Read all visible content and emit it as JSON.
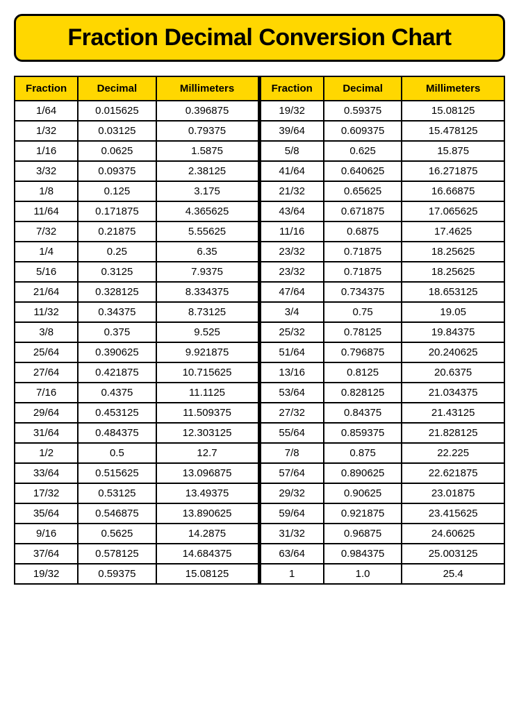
{
  "title": "Fraction Decimal Conversion Chart",
  "colors": {
    "header_bg": "#ffd700",
    "border": "#000000",
    "text": "#000000",
    "page_bg": "#ffffff"
  },
  "typography": {
    "title_fontsize": 34,
    "title_weight": 900,
    "header_fontsize": 15,
    "header_weight": 900,
    "cell_fontsize": 15
  },
  "columns": [
    "Fraction",
    "Decimal",
    "Millimeters"
  ],
  "left_rows": [
    [
      "1/64",
      "0.015625",
      "0.396875"
    ],
    [
      "1/32",
      "0.03125",
      "0.79375"
    ],
    [
      "1/16",
      "0.0625",
      "1.5875"
    ],
    [
      "3/32",
      "0.09375",
      "2.38125"
    ],
    [
      "1/8",
      "0.125",
      "3.175"
    ],
    [
      "11/64",
      "0.171875",
      "4.365625"
    ],
    [
      "7/32",
      "0.21875",
      "5.55625"
    ],
    [
      "1/4",
      "0.25",
      "6.35"
    ],
    [
      "5/16",
      "0.3125",
      "7.9375"
    ],
    [
      "21/64",
      "0.328125",
      "8.334375"
    ],
    [
      "11/32",
      "0.34375",
      "8.73125"
    ],
    [
      "3/8",
      "0.375",
      "9.525"
    ],
    [
      "25/64",
      "0.390625",
      "9.921875"
    ],
    [
      "27/64",
      "0.421875",
      "10.715625"
    ],
    [
      "7/16",
      "0.4375",
      "11.1125"
    ],
    [
      "29/64",
      "0.453125",
      "11.509375"
    ],
    [
      "31/64",
      "0.484375",
      "12.303125"
    ],
    [
      "1/2",
      "0.5",
      "12.7"
    ],
    [
      "33/64",
      "0.515625",
      "13.096875"
    ],
    [
      "17/32",
      "0.53125",
      "13.49375"
    ],
    [
      "35/64",
      "0.546875",
      "13.890625"
    ],
    [
      "9/16",
      "0.5625",
      "14.2875"
    ],
    [
      "37/64",
      "0.578125",
      "14.684375"
    ],
    [
      "19/32",
      "0.59375",
      "15.08125"
    ]
  ],
  "right_rows": [
    [
      "19/32",
      "0.59375",
      "15.08125"
    ],
    [
      "39/64",
      "0.609375",
      "15.478125"
    ],
    [
      "5/8",
      "0.625",
      "15.875"
    ],
    [
      "41/64",
      "0.640625",
      "16.271875"
    ],
    [
      "21/32",
      "0.65625",
      "16.66875"
    ],
    [
      "43/64",
      "0.671875",
      "17.065625"
    ],
    [
      "11/16",
      "0.6875",
      "17.4625"
    ],
    [
      "23/32",
      "0.71875",
      "18.25625"
    ],
    [
      "23/32",
      "0.71875",
      "18.25625"
    ],
    [
      "47/64",
      "0.734375",
      "18.653125"
    ],
    [
      "3/4",
      "0.75",
      "19.05"
    ],
    [
      "25/32",
      "0.78125",
      "19.84375"
    ],
    [
      "51/64",
      "0.796875",
      "20.240625"
    ],
    [
      "13/16",
      "0.8125",
      "20.6375"
    ],
    [
      "53/64",
      "0.828125",
      "21.034375"
    ],
    [
      "27/32",
      "0.84375",
      "21.43125"
    ],
    [
      "55/64",
      "0.859375",
      "21.828125"
    ],
    [
      "7/8",
      "0.875",
      "22.225"
    ],
    [
      "57/64",
      "0.890625",
      "22.621875"
    ],
    [
      "29/32",
      "0.90625",
      "23.01875"
    ],
    [
      "59/64",
      "0.921875",
      "23.415625"
    ],
    [
      "31/32",
      "0.96875",
      "24.60625"
    ],
    [
      "63/64",
      "0.984375",
      "25.003125"
    ],
    [
      "1",
      "1.0",
      "25.4"
    ]
  ]
}
